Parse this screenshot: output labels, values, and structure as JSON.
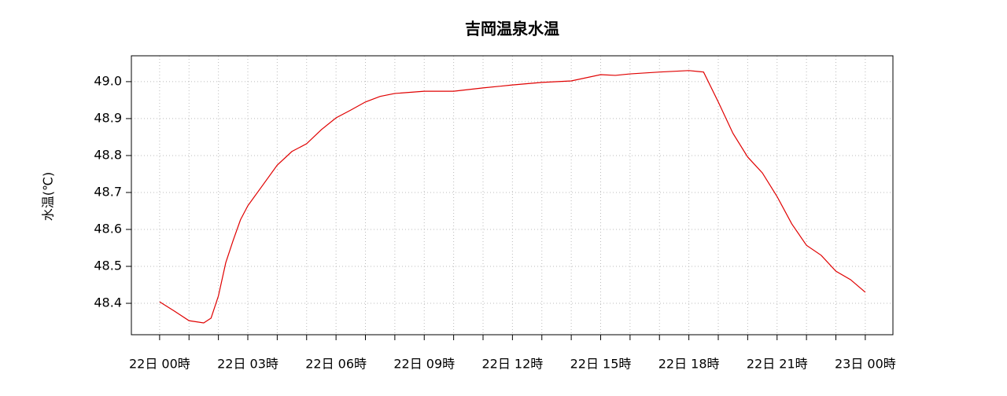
{
  "chart_data": {
    "type": "line",
    "title": "吉岡温泉水温",
    "y_label": "水温(℃)",
    "x": [
      0,
      0.5,
      1,
      1.5,
      1.75,
      2,
      2.25,
      2.5,
      2.75,
      3,
      3.5,
      4,
      4.5,
      5,
      5.5,
      6,
      6.5,
      7,
      7.5,
      8,
      9,
      10,
      11,
      12,
      13,
      14,
      15,
      15.5,
      16,
      17,
      18,
      18.5,
      19,
      19.5,
      20,
      20.5,
      21,
      21.5,
      22,
      22.5,
      23,
      23.5,
      24
    ],
    "series": [
      {
        "color": "#e00000",
        "values": [
          48.404,
          48.379,
          48.353,
          48.347,
          48.36,
          48.42,
          48.51,
          48.57,
          48.626,
          48.664,
          48.719,
          48.774,
          48.811,
          48.832,
          48.87,
          48.902,
          48.923,
          48.945,
          48.96,
          48.968,
          48.974,
          48.974,
          48.983,
          48.991,
          48.998,
          49.002,
          49.019,
          49.017,
          49.021,
          49.026,
          49.03,
          49.026,
          48.945,
          48.86,
          48.796,
          48.753,
          48.689,
          48.615,
          48.557,
          48.53,
          48.487,
          48.464,
          48.43
        ]
      }
    ],
    "xlim": [
      -0.96,
      24.94
    ],
    "ylim": [
      48.315,
      49.07
    ],
    "yticks": [
      {
        "value": 48.4,
        "label": "48.4"
      },
      {
        "value": 48.5,
        "label": "48.5"
      },
      {
        "value": 48.6,
        "label": "48.6"
      },
      {
        "value": 48.7,
        "label": "48.7"
      },
      {
        "value": 48.8,
        "label": "48.8"
      },
      {
        "value": 48.9,
        "label": "48.9"
      },
      {
        "value": 49.0,
        "label": "49.0"
      }
    ],
    "xticks": [
      {
        "value": 0,
        "label": "22日 00時"
      },
      {
        "value": 3,
        "label": "22日 03時"
      },
      {
        "value": 6,
        "label": "22日 06時"
      },
      {
        "value": 9,
        "label": "22日 09時"
      },
      {
        "value": 12,
        "label": "22日 12時"
      },
      {
        "value": 15,
        "label": "22日 15時"
      },
      {
        "value": 18,
        "label": "22日 18時"
      },
      {
        "value": 21,
        "label": "22日 21時"
      },
      {
        "value": 24,
        "label": "23日 00時"
      }
    ],
    "xminorticks": [
      1,
      2,
      4,
      5,
      7,
      8,
      10,
      11,
      13,
      14,
      16,
      17,
      19,
      20,
      22,
      23
    ],
    "grid": true
  }
}
